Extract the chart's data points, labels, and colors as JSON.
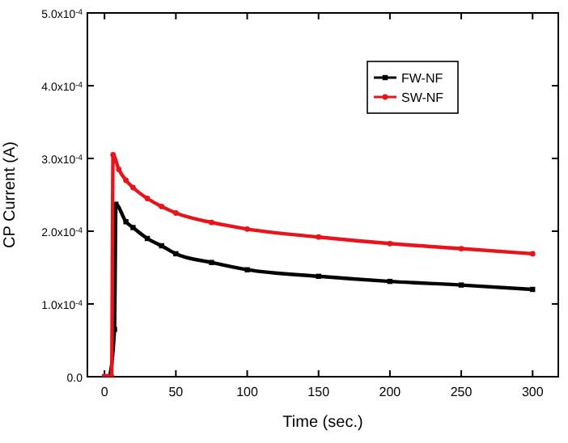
{
  "chart_data": {
    "type": "line",
    "xlabel": "Time (sec.)",
    "ylabel": "CP Current (A)",
    "xlim": [
      -12,
      318
    ],
    "ylim": [
      0,
      0.0005
    ],
    "xticks": [
      0,
      50,
      100,
      150,
      200,
      250,
      300
    ],
    "yticks": [
      {
        "value": 0,
        "label": "0.0"
      },
      {
        "value": 0.0001,
        "label": "1.0x10$^{-4}$"
      },
      {
        "value": 0.0002,
        "label": "2.0x10$^{-4}$"
      },
      {
        "value": 0.0003,
        "label": "3.0x10$^{-4}$"
      },
      {
        "value": 0.0004,
        "label": "4.0x10$^{-4}$"
      },
      {
        "value": 0.0005,
        "label": "5.0x10$^{-4}$"
      }
    ],
    "legend": "top right",
    "grid": false,
    "series": [
      {
        "name": "FW-NF",
        "color": "#000000",
        "marker": "square",
        "x": [
          0,
          3,
          7,
          8,
          15,
          20,
          30,
          40,
          50,
          75,
          100,
          150,
          200,
          250,
          300
        ],
        "values": [
          0,
          0,
          6.5e-05,
          0.000237,
          0.000213,
          0.000205,
          0.00019,
          0.00018,
          0.000169,
          0.000157,
          0.000147,
          0.000138,
          0.000131,
          0.000126,
          0.00012
        ]
      },
      {
        "name": "SW-NF",
        "color": "#e8141c",
        "marker": "circle",
        "x": [
          0,
          3,
          5,
          6,
          10,
          15,
          20,
          30,
          40,
          50,
          75,
          100,
          150,
          200,
          250,
          300
        ],
        "values": [
          0,
          0,
          0,
          0.000305,
          0.000285,
          0.00027,
          0.00026,
          0.000245,
          0.000234,
          0.000225,
          0.000212,
          0.000203,
          0.000192,
          0.000183,
          0.000176,
          0.000169
        ]
      }
    ]
  }
}
